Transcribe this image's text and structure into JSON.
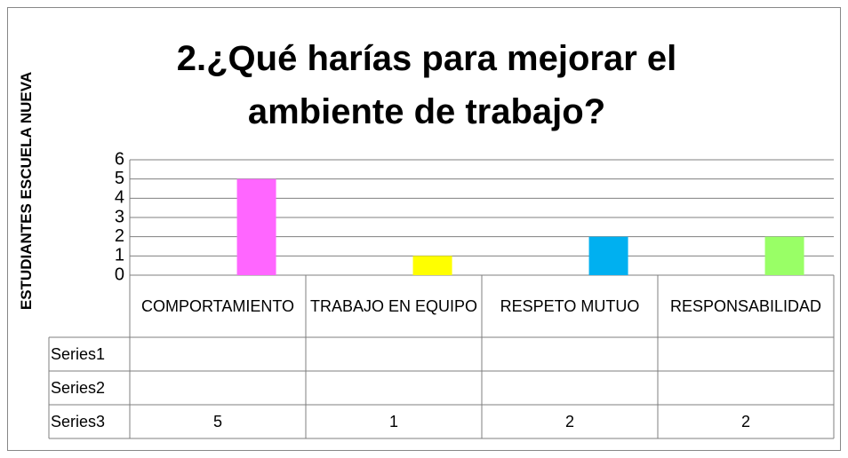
{
  "chart_data": {
    "type": "bar",
    "title": "2.¿Qué harías para mejorar el ambiente de trabajo?",
    "ylabel": "ESTUDIANTES ESCUELA NUEVA",
    "categories": [
      "COMPORTAMIENTO",
      "TRABAJO EN EQUIPO",
      "RESPETO MUTUO",
      "RESPONSABILIDAD"
    ],
    "series": [
      {
        "name": "Series1",
        "values": [
          null,
          null,
          null,
          null
        ]
      },
      {
        "name": "Series2",
        "values": [
          null,
          null,
          null,
          null
        ]
      },
      {
        "name": "Series3",
        "colors": [
          "#ff66ff",
          "#ffff00",
          "#00b0f0",
          "#99ff66"
        ],
        "values": [
          5,
          1,
          2,
          2
        ]
      }
    ],
    "ylim": [
      0,
      6
    ],
    "yticks": [
      0,
      1,
      2,
      3,
      4,
      5,
      6
    ],
    "grid": true,
    "data_table": true
  }
}
